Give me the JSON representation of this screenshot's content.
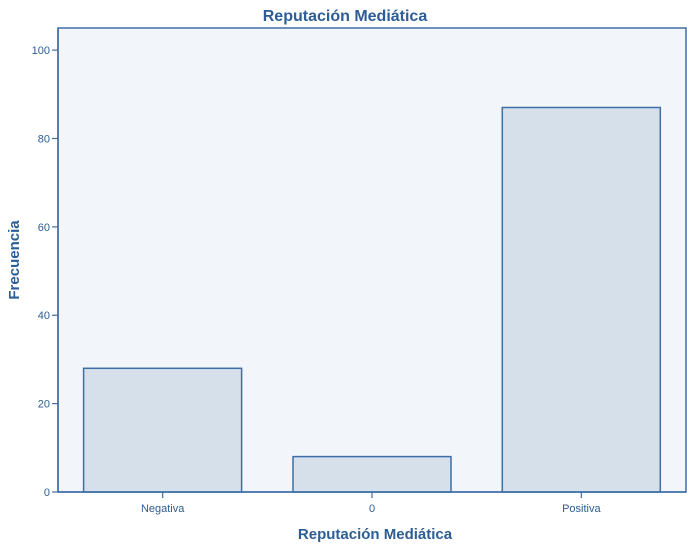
{
  "chart_data": {
    "type": "bar",
    "title": "Reputación Mediática",
    "xlabel": "Reputación Mediática",
    "ylabel": "Frecuencia",
    "categories": [
      "Negativa",
      "0",
      "Positiva"
    ],
    "values": [
      28,
      8,
      87
    ],
    "ylim": [
      0,
      105
    ],
    "yticks": [
      0,
      20,
      40,
      60,
      80,
      100
    ],
    "grid": false,
    "legend": "none"
  },
  "colors": {
    "bar_fill": "#d6e0eb",
    "bar_stroke": "#3e6ea6",
    "plot_background": "#f2f5f9",
    "axis": "#3e6ea6",
    "text": "#2c5d95"
  }
}
